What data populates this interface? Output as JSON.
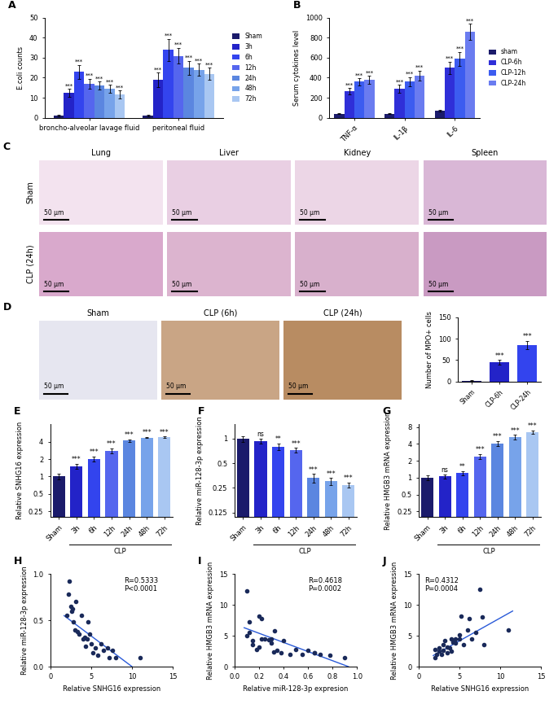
{
  "chart_data": [
    {
      "panel_label": "A",
      "type": "bar",
      "ylabel": "E.coli counts",
      "categories": [
        "broncho-alveolar lavage fluid",
        "peritoneal fluid"
      ],
      "series": [
        {
          "name": "Sham",
          "color": "#1b1b6b",
          "values": [
            1,
            1
          ],
          "errors": [
            0.3,
            0.3
          ],
          "significance": [
            null,
            null
          ]
        },
        {
          "name": "3h",
          "color": "#2323c8",
          "values": [
            12.5,
            19
          ],
          "errors": [
            2,
            3.5
          ],
          "significance": [
            "***",
            "***"
          ]
        },
        {
          "name": "6h",
          "color": "#3344ee",
          "values": [
            23,
            34
          ],
          "errors": [
            3.5,
            5.5
          ],
          "significance": [
            "***",
            "***"
          ]
        },
        {
          "name": "12h",
          "color": "#5566ee",
          "values": [
            17,
            31
          ],
          "errors": [
            2.5,
            4
          ],
          "significance": [
            "***",
            "***"
          ]
        },
        {
          "name": "24h",
          "color": "#5b86e0",
          "values": [
            16,
            25
          ],
          "errors": [
            2,
            3.5
          ],
          "significance": [
            "***",
            "***"
          ]
        },
        {
          "name": "48h",
          "color": "#77a3ea",
          "values": [
            14.5,
            24
          ],
          "errors": [
            2,
            3
          ],
          "significance": [
            "***",
            "***"
          ]
        },
        {
          "name": "72h",
          "color": "#a9c7f2",
          "values": [
            11.5,
            22
          ],
          "errors": [
            2,
            3
          ],
          "significance": [
            "***",
            "***"
          ]
        }
      ],
      "ylim": [
        0,
        50
      ],
      "yticks": [
        0,
        10,
        20,
        30,
        40,
        50
      ],
      "legend": "right"
    },
    {
      "panel_label": "B",
      "type": "bar",
      "ylabel": "Serum cytokines level",
      "categories": [
        "TNF-α",
        "IL-1β",
        "IL-6"
      ],
      "series": [
        {
          "name": "sham",
          "color": "#1b1b6b",
          "values": [
            40,
            40,
            70
          ],
          "errors": [
            5,
            5,
            8
          ],
          "significance": [
            null,
            null,
            null
          ]
        },
        {
          "name": "CLP-6h",
          "color": "#2f2fd8",
          "values": [
            265,
            290,
            500
          ],
          "errors": [
            30,
            40,
            60
          ],
          "significance": [
            "***",
            "***",
            "***"
          ]
        },
        {
          "name": "CLP-12h",
          "color": "#3c5cf0",
          "values": [
            360,
            360,
            590
          ],
          "errors": [
            35,
            45,
            70
          ],
          "significance": [
            "***",
            "***",
            "***"
          ]
        },
        {
          "name": "CLP-24h",
          "color": "#6a7cf0",
          "values": [
            380,
            420,
            860
          ],
          "errors": [
            40,
            50,
            80
          ],
          "significance": [
            "***",
            "***",
            "***"
          ]
        }
      ],
      "ylim": [
        0,
        1000
      ],
      "yticks": [
        0,
        200,
        400,
        600,
        800,
        1000
      ],
      "legend": "right"
    },
    {
      "type": "bar",
      "ylabel": "Number of MPO+ cells",
      "categories": [
        "Sham",
        "CLP-6h",
        "CLP-24h"
      ],
      "values": [
        2,
        45,
        85
      ],
      "errors": [
        1,
        5,
        10
      ],
      "significance": [
        null,
        "***",
        "***"
      ],
      "colors": [
        "#1b1b6b",
        "#2323c8",
        "#3344ee"
      ],
      "ylim": [
        0,
        150
      ],
      "yticks": [
        0,
        50,
        100,
        150
      ]
    },
    {
      "panel_label": "E",
      "type": "bar",
      "ylabel": "Relative SNHG16 expression",
      "log": "y",
      "categories": [
        "Sham",
        "3h",
        "6h",
        "12h",
        "24h",
        "48h",
        "72h"
      ],
      "group_label": "CLP",
      "values": [
        1,
        1.5,
        2,
        2.8,
        4.2,
        4.7,
        4.8
      ],
      "errors": [
        0.1,
        0.15,
        0.2,
        0.25,
        0.2,
        0.1,
        0.1
      ],
      "significance": [
        null,
        "***",
        "***",
        "***",
        "***",
        "***",
        "***"
      ],
      "colors": [
        "#1b1b6b",
        "#2323c8",
        "#3344ee",
        "#5566ee",
        "#5b86e0",
        "#77a3ea",
        "#a9c7f2"
      ],
      "ylim": [
        0.2,
        8
      ],
      "yticks": [
        0.25,
        0.5,
        1,
        2,
        4
      ]
    },
    {
      "panel_label": "F",
      "type": "bar",
      "ylabel": "Relative miR-128-3p expression",
      "log": "y",
      "categories": [
        "Sham",
        "3h",
        "6h",
        "12h",
        "24h",
        "48h",
        "72h"
      ],
      "group_label": "CLP",
      "values": [
        1,
        0.93,
        0.8,
        0.72,
        0.33,
        0.3,
        0.27
      ],
      "errors": [
        0.08,
        0.07,
        0.07,
        0.05,
        0.04,
        0.03,
        0.02
      ],
      "significance": [
        null,
        "ns",
        "**",
        "***",
        "***",
        "***",
        "***"
      ],
      "colors": [
        "#1b1b6b",
        "#2323c8",
        "#3344ee",
        "#5566ee",
        "#5b86e0",
        "#77a3ea",
        "#a9c7f2"
      ],
      "ylim": [
        0.11,
        1.5
      ],
      "yticks": [
        0.125,
        0.25,
        0.5,
        1
      ]
    },
    {
      "panel_label": "G",
      "type": "bar",
      "ylabel": "Relative HMGB3 mRNA expression",
      "log": "y",
      "categories": [
        "Sham",
        "3h",
        "6h",
        "12h",
        "24h",
        "48h",
        "72h"
      ],
      "group_label": "CLP",
      "values": [
        1,
        1.05,
        1.2,
        2.4,
        4.1,
        5.3,
        6.5
      ],
      "errors": [
        0.1,
        0.1,
        0.1,
        0.25,
        0.4,
        0.5,
        0.5
      ],
      "significance": [
        null,
        "ns",
        "**",
        "***",
        "***",
        "***",
        "***"
      ],
      "colors": [
        "#1b1b6b",
        "#2323c8",
        "#3344ee",
        "#5566ee",
        "#5b86e0",
        "#77a3ea",
        "#a9c7f2"
      ],
      "ylim": [
        0.2,
        9
      ],
      "yticks": [
        0.25,
        0.5,
        1,
        2,
        4,
        8
      ]
    },
    {
      "panel_label": "H",
      "type": "scatter",
      "xlabel": "Relative SNHG16 expression",
      "ylabel": "Relative miR-128-3p expression",
      "annotation": "R=0.5333\nP<0.0001",
      "color": "#1a2a5a",
      "marker": "o",
      "x": [
        2.0,
        2.2,
        2.3,
        2.5,
        2.6,
        2.7,
        2.8,
        3.0,
        3.1,
        3.3,
        3.5,
        3.8,
        4.0,
        4.2,
        4.3,
        4.5,
        4.6,
        4.8,
        5.0,
        5.2,
        5.5,
        5.8,
        6.2,
        6.5,
        7.0,
        7.2,
        7.6,
        8.0,
        11.0
      ],
      "y": [
        0.55,
        0.78,
        0.92,
        0.65,
        0.6,
        0.62,
        0.48,
        0.4,
        0.7,
        0.38,
        0.35,
        0.55,
        0.3,
        0.32,
        0.22,
        0.3,
        0.48,
        0.35,
        0.25,
        0.15,
        0.2,
        0.12,
        0.25,
        0.18,
        0.2,
        0.1,
        0.18,
        0.1,
        0.1
      ],
      "fit": {
        "color": "#2a5ad8",
        "x": [
          1.7,
          10
        ],
        "y": [
          0.55,
          0
        ]
      },
      "xlim": [
        0,
        15
      ],
      "xticks": [
        0,
        5,
        10,
        15
      ],
      "ylim": [
        0,
        1
      ],
      "yticks": [
        {
          "value": 0,
          "label": "0.0"
        },
        0.5,
        {
          "value": 1,
          "label": "1.0"
        }
      ]
    },
    {
      "panel_label": "I",
      "type": "scatter",
      "xlabel": "Relative miR-128-3p expresion",
      "ylabel": "Relative HMGB3 mRNA expression",
      "annotation": "R=0.4618\nP=0.0002",
      "color": "#1a2a5a",
      "marker": "o",
      "x": [
        0.1,
        0.1,
        0.12,
        0.12,
        0.15,
        0.15,
        0.18,
        0.2,
        0.2,
        0.22,
        0.22,
        0.25,
        0.28,
        0.3,
        0.3,
        0.32,
        0.33,
        0.35,
        0.38,
        0.4,
        0.45,
        0.5,
        0.55,
        0.6,
        0.65,
        0.65,
        0.7,
        0.78,
        0.9
      ],
      "y": [
        12.3,
        5.0,
        5.5,
        7.3,
        4.2,
        3.6,
        2.8,
        8.2,
        3.2,
        7.8,
        4.5,
        4.5,
        4.4,
        4.5,
        3.8,
        2.4,
        5.8,
        2.6,
        2.2,
        4.2,
        2.0,
        2.8,
        2.0,
        2.6,
        2.3,
        2.2,
        2.0,
        1.8,
        1.5
      ],
      "fit": {
        "color": "#2a5ad8",
        "x": [
          0.08,
          0.93
        ],
        "y": [
          6.3,
          0
        ]
      },
      "xlim": [
        0,
        1
      ],
      "xticks": [
        {
          "value": 0,
          "label": "0.0"
        },
        0.2,
        0.4,
        0.6,
        0.8,
        {
          "value": 1,
          "label": "1.0"
        }
      ],
      "ylim": [
        0,
        15
      ],
      "yticks": [
        0,
        5,
        10,
        15
      ]
    },
    {
      "panel_label": "J",
      "type": "scatter",
      "xlabel": "Relative SNHG16 expression",
      "ylabel": "Relative HMGB3 mRNA expression",
      "annotation": "R=0.4312\nP=0.0004",
      "color": "#1a2a5a",
      "marker": "o",
      "x": [
        2,
        2,
        2.2,
        2.5,
        2.5,
        2.8,
        3,
        3,
        3.2,
        3.5,
        3.5,
        3.8,
        4,
        4,
        4.2,
        4.5,
        4.5,
        5,
        5,
        5.2,
        5.5,
        6,
        6.2,
        6.5,
        7,
        7.5,
        7.8,
        8,
        11
      ],
      "y": [
        1.5,
        2.8,
        2.0,
        2.5,
        3.0,
        2.0,
        3.5,
        2.6,
        4.2,
        2.2,
        3.2,
        3.0,
        4.5,
        2.5,
        4.0,
        3.8,
        4.5,
        4.5,
        5.2,
        8.2,
        3.5,
        6.0,
        7.8,
        4.5,
        5.5,
        12.5,
        8.0,
        3.5,
        6.0
      ],
      "fit": {
        "color": "#2a5ad8",
        "x": [
          1.8,
          11.5
        ],
        "y": [
          1.8,
          9.0
        ]
      },
      "xlim": [
        0,
        15
      ],
      "xticks": [
        0,
        5,
        10,
        15
      ],
      "ylim": [
        0,
        15
      ],
      "yticks": [
        0,
        5,
        10,
        15
      ]
    }
  ],
  "images": [
    {
      "panel_label": "C",
      "columns": [
        "Lung",
        "Liver",
        "Kidney",
        "Spleen"
      ],
      "rows": [
        "Sham",
        "CLP (24h)"
      ],
      "scale_bar": "50 μm"
    },
    {
      "panel_label": "D",
      "columns": [
        "Sham",
        "CLP (6h)",
        "CLP (24h)"
      ],
      "scale_bar": "50 μm"
    }
  ]
}
